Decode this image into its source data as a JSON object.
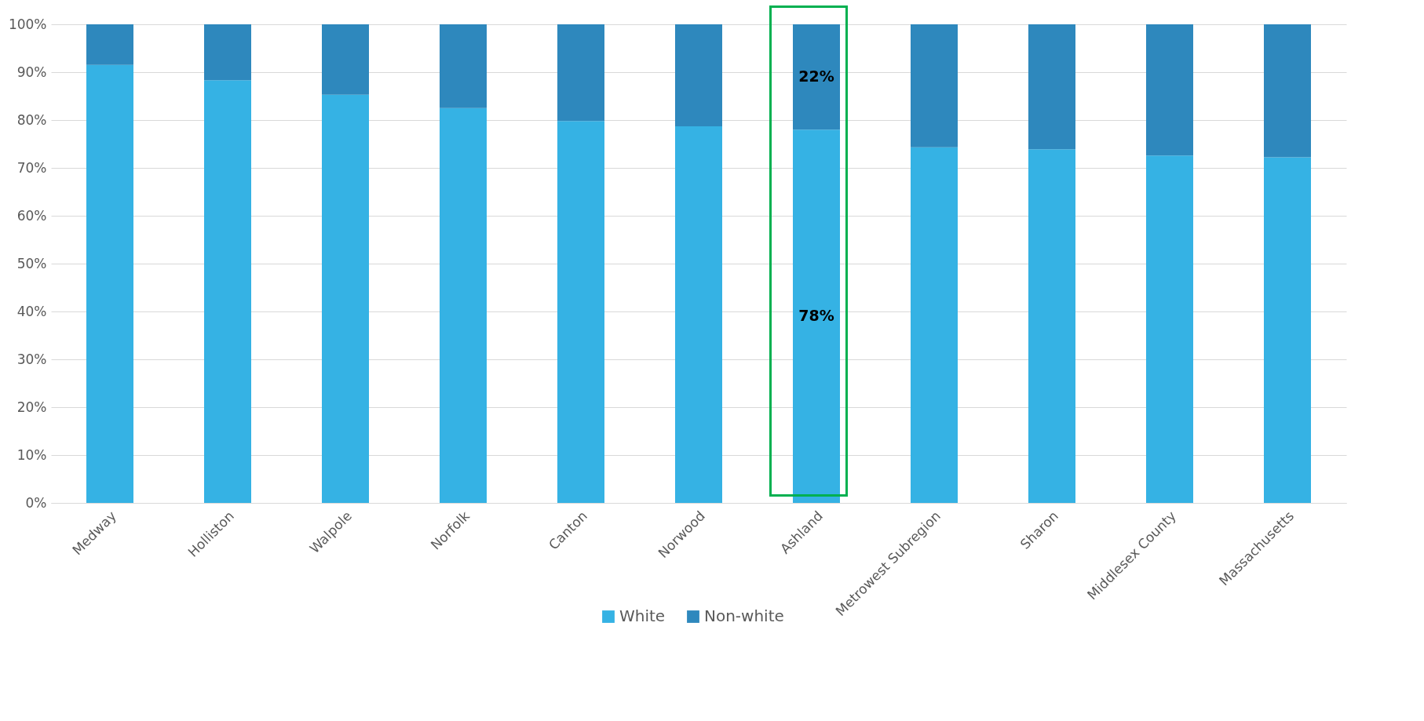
{
  "chart_data": {
    "type": "bar",
    "stacked": true,
    "categories": [
      "Medway",
      "Holliston",
      "Walpole",
      "Norfolk",
      "Canton",
      "Norwood",
      "Ashland",
      "Metrowest Subregion",
      "Sharon",
      "Middlesex County",
      "Massachusetts"
    ],
    "series": [
      {
        "name": "White",
        "color": "#35b2e4",
        "values": [
          91.5,
          88.3,
          85.3,
          82.5,
          79.8,
          78.7,
          78,
          74.3,
          73.9,
          72.6,
          72.2
        ],
        "value_labels": [
          null,
          null,
          null,
          null,
          null,
          null,
          "78%",
          null,
          null,
          null,
          null
        ]
      },
      {
        "name": "Non-white",
        "color": "#2e88bd",
        "values": [
          8.5,
          11.7,
          14.7,
          17.5,
          20.2,
          21.3,
          22,
          25.7,
          26.1,
          27.4,
          27.8
        ],
        "value_labels": [
          null,
          null,
          null,
          null,
          null,
          null,
          "22%",
          null,
          null,
          null,
          null
        ]
      }
    ],
    "ylim": [
      0,
      100
    ],
    "yticks": [
      {
        "value": 0,
        "label": "0%"
      },
      {
        "value": 10,
        "label": "10%"
      },
      {
        "value": 20,
        "label": "20%"
      },
      {
        "value": 30,
        "label": "30%"
      },
      {
        "value": 40,
        "label": "40%"
      },
      {
        "value": 50,
        "label": "50%"
      },
      {
        "value": 60,
        "label": "60%"
      },
      {
        "value": 70,
        "label": "70%"
      },
      {
        "value": 80,
        "label": "80%"
      },
      {
        "value": 90,
        "label": "90%"
      },
      {
        "value": 100,
        "label": "100%"
      }
    ],
    "grid": "y",
    "legend": "bottom"
  }
}
